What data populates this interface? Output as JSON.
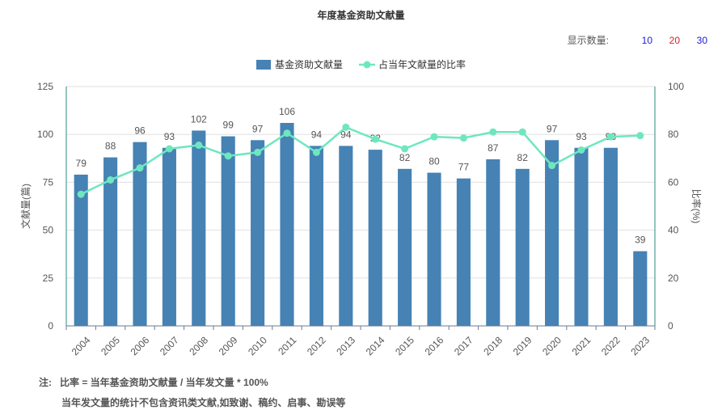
{
  "title": "年度基金资助文献量",
  "display_count": {
    "label": "显示数量:",
    "options": [
      {
        "text": "10",
        "color": "#1a1adb"
      },
      {
        "text": "20",
        "color": "#d62222"
      },
      {
        "text": "30",
        "color": "#1a1adb"
      }
    ]
  },
  "notes": {
    "prefix": "注:",
    "line1": "比率 = 当年基金资助文献量 / 当年发文量 * 100%",
    "line2": "当年发文量的统计不包含资讯类文献,如致谢、稿约、启事、勘误等"
  },
  "chart_data": {
    "type": "bar",
    "categories": [
      "2004",
      "2005",
      "2006",
      "2007",
      "2008",
      "2009",
      "2010",
      "2011",
      "2012",
      "2013",
      "2014",
      "2015",
      "2016",
      "2017",
      "2018",
      "2019",
      "2020",
      "2021",
      "2022",
      "2023"
    ],
    "series": [
      {
        "name": "基金资助文献量",
        "type": "bar",
        "axis": "left",
        "color": "#4682b4",
        "values": [
          79,
          88,
          96,
          93,
          102,
          99,
          97,
          106,
          94,
          94,
          92,
          82,
          80,
          77,
          87,
          82,
          97,
          93,
          93,
          39
        ]
      },
      {
        "name": "占当年文献量的比率",
        "type": "line",
        "axis": "right",
        "color": "#6ee7c0",
        "values": [
          55,
          61,
          66,
          74,
          75.5,
          71,
          72.5,
          80.5,
          72.5,
          83,
          78,
          74,
          79,
          78.5,
          81,
          81,
          67,
          73.5,
          79,
          79.5
        ]
      }
    ],
    "ylabel": "文献量(篇)",
    "y2label": "比率(%)",
    "ylim": [
      0,
      125
    ],
    "y2lim": [
      0,
      100
    ],
    "yticks": [
      0,
      25,
      50,
      75,
      100,
      125
    ],
    "y2ticks": [
      0,
      20,
      40,
      60,
      80,
      100
    ],
    "legend": "top-center",
    "grid": true
  }
}
